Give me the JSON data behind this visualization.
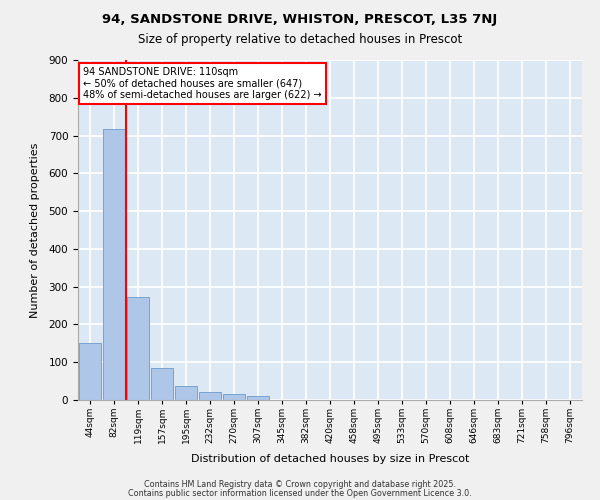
{
  "title1": "94, SANDSTONE DRIVE, WHISTON, PRESCOT, L35 7NJ",
  "title2": "Size of property relative to detached houses in Prescot",
  "xlabel": "Distribution of detached houses by size in Prescot",
  "ylabel": "Number of detached properties",
  "bins": [
    "44sqm",
    "82sqm",
    "119sqm",
    "157sqm",
    "195sqm",
    "232sqm",
    "270sqm",
    "307sqm",
    "345sqm",
    "382sqm",
    "420sqm",
    "458sqm",
    "495sqm",
    "533sqm",
    "570sqm",
    "608sqm",
    "646sqm",
    "683sqm",
    "721sqm",
    "758sqm",
    "796sqm"
  ],
  "values": [
    150,
    718,
    272,
    85,
    38,
    22,
    15,
    10,
    0,
    0,
    0,
    0,
    0,
    0,
    0,
    0,
    0,
    0,
    0,
    0,
    0
  ],
  "bar_color": "#aec6e8",
  "bar_edge_color": "#5a8fc4",
  "annotation_title": "94 SANDSTONE DRIVE: 110sqm",
  "annotation_line2": "← 50% of detached houses are smaller (647)",
  "annotation_line3": "48% of semi-detached houses are larger (622) →",
  "ylim": [
    0,
    900
  ],
  "yticks": [
    0,
    100,
    200,
    300,
    400,
    500,
    600,
    700,
    800,
    900
  ],
  "bg_color": "#dde8f5",
  "grid_color": "#ffffff",
  "fig_bg_color": "#f0f0f0",
  "footer1": "Contains HM Land Registry data © Crown copyright and database right 2025.",
  "footer2": "Contains public sector information licensed under the Open Government Licence 3.0."
}
